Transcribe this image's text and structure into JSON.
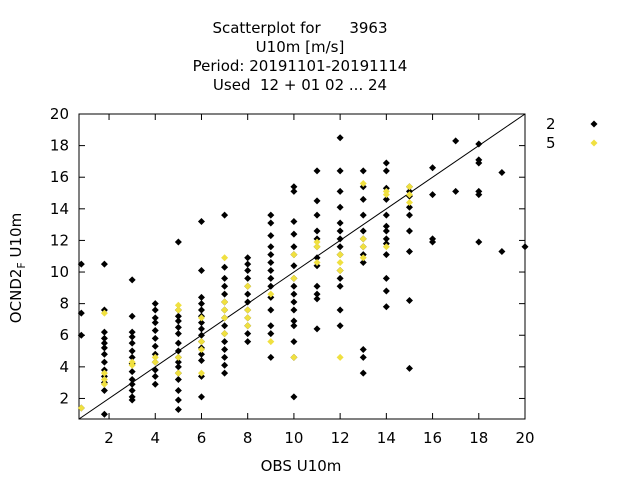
{
  "title_lines": [
    "Scatterplot for      3963",
    "U10m [m/s]",
    "Period: 20191101-20191114",
    "Used  12 + 01 02 ... 24"
  ],
  "colors": {
    "series_2": "#000000",
    "series_5": "#f0e040",
    "axes": "#000000"
  },
  "chart_data": {
    "type": "scatter",
    "title": "Scatterplot for 3963 / U10m [m/s] / Period: 20191101-20191114 / Used 12 + 01 02 ... 24",
    "xlabel": "OBS U10m",
    "ylabel": "OCND2_F U10m",
    "xlim": [
      0.7,
      20
    ],
    "ylim": [
      0.7,
      20
    ],
    "xticks": [
      2,
      4,
      6,
      8,
      10,
      12,
      14,
      16,
      18,
      20
    ],
    "yticks": [
      2,
      4,
      6,
      8,
      10,
      12,
      14,
      16,
      18,
      20
    ],
    "legend_placement": "top-right outside",
    "diagonal_line": true,
    "series": [
      {
        "name": "2",
        "marker": "diamond",
        "color": "#000000",
        "points": [
          [
            0.8,
            10.5
          ],
          [
            0.8,
            7.4
          ],
          [
            0.8,
            6.0
          ],
          [
            0.8,
            1.4
          ],
          [
            1.8,
            10.5
          ],
          [
            1.8,
            7.6
          ],
          [
            1.8,
            6.2
          ],
          [
            1.8,
            5.8
          ],
          [
            1.8,
            5.5
          ],
          [
            1.8,
            5.2
          ],
          [
            1.8,
            4.8
          ],
          [
            1.8,
            4.3
          ],
          [
            1.8,
            3.8
          ],
          [
            1.8,
            3.4
          ],
          [
            1.8,
            3.0
          ],
          [
            1.8,
            2.5
          ],
          [
            1.8,
            1.0
          ],
          [
            3,
            9.5
          ],
          [
            3,
            7.2
          ],
          [
            3,
            6.2
          ],
          [
            3,
            5.9
          ],
          [
            3,
            5.5
          ],
          [
            3,
            5.0
          ],
          [
            3,
            4.6
          ],
          [
            3,
            4.2
          ],
          [
            3,
            3.7
          ],
          [
            3,
            3.2
          ],
          [
            3,
            2.9
          ],
          [
            3,
            2.5
          ],
          [
            3,
            2.1
          ],
          [
            3,
            1.9
          ],
          [
            4,
            8.0
          ],
          [
            4,
            7.6
          ],
          [
            4,
            7.1
          ],
          [
            4,
            6.8
          ],
          [
            4,
            6.3
          ],
          [
            4,
            5.8
          ],
          [
            4,
            5.3
          ],
          [
            4,
            4.8
          ],
          [
            4,
            4.3
          ],
          [
            4,
            3.8
          ],
          [
            4,
            3.4
          ],
          [
            4,
            2.9
          ],
          [
            5,
            11.9
          ],
          [
            5,
            7.6
          ],
          [
            5,
            7.2
          ],
          [
            5,
            6.9
          ],
          [
            5,
            6.5
          ],
          [
            5,
            6.1
          ],
          [
            5,
            5.5
          ],
          [
            5,
            5.0
          ],
          [
            5,
            4.6
          ],
          [
            5,
            4.3
          ],
          [
            5,
            4.0
          ],
          [
            5,
            3.6
          ],
          [
            5,
            3.2
          ],
          [
            5,
            2.5
          ],
          [
            5,
            1.9
          ],
          [
            5,
            1.3
          ],
          [
            6,
            13.2
          ],
          [
            6,
            10.1
          ],
          [
            6,
            8.4
          ],
          [
            6,
            8.0
          ],
          [
            6,
            7.6
          ],
          [
            6,
            7.2
          ],
          [
            6,
            6.8
          ],
          [
            6,
            6.4
          ],
          [
            6,
            6.0
          ],
          [
            6,
            5.6
          ],
          [
            6,
            5.2
          ],
          [
            6,
            4.8
          ],
          [
            6,
            4.4
          ],
          [
            6,
            3.4
          ],
          [
            6,
            2.1
          ],
          [
            7,
            13.6
          ],
          [
            7,
            10.3
          ],
          [
            7,
            9.6
          ],
          [
            7,
            9.1
          ],
          [
            7,
            8.6
          ],
          [
            7,
            8.1
          ],
          [
            7,
            7.6
          ],
          [
            7,
            7.1
          ],
          [
            7,
            6.6
          ],
          [
            7,
            6.1
          ],
          [
            7,
            5.6
          ],
          [
            7,
            5.1
          ],
          [
            7,
            4.6
          ],
          [
            7,
            4.1
          ],
          [
            7,
            3.6
          ],
          [
            8,
            10.9
          ],
          [
            8,
            10.5
          ],
          [
            8,
            10.1
          ],
          [
            8,
            9.6
          ],
          [
            8,
            9.1
          ],
          [
            8,
            8.6
          ],
          [
            8,
            8.1
          ],
          [
            8,
            7.6
          ],
          [
            8,
            7.1
          ],
          [
            8,
            6.6
          ],
          [
            8,
            6.1
          ],
          [
            8,
            5.6
          ],
          [
            9,
            13.6
          ],
          [
            9,
            13.1
          ],
          [
            9,
            12.3
          ],
          [
            9,
            11.6
          ],
          [
            9,
            11.1
          ],
          [
            9,
            10.6
          ],
          [
            9,
            10.1
          ],
          [
            9,
            9.6
          ],
          [
            9,
            9.1
          ],
          [
            9,
            8.4
          ],
          [
            9,
            7.6
          ],
          [
            9,
            6.6
          ],
          [
            9,
            6.1
          ],
          [
            9,
            4.6
          ],
          [
            10,
            15.4
          ],
          [
            10,
            15.1
          ],
          [
            10,
            13.2
          ],
          [
            10,
            12.4
          ],
          [
            10,
            11.6
          ],
          [
            10,
            11.1
          ],
          [
            10,
            10.4
          ],
          [
            10,
            9.6
          ],
          [
            10,
            9.1
          ],
          [
            10,
            8.6
          ],
          [
            10,
            8.1
          ],
          [
            10,
            7.6
          ],
          [
            10,
            6.9
          ],
          [
            10,
            6.6
          ],
          [
            10,
            5.6
          ],
          [
            10,
            4.6
          ],
          [
            10,
            2.1
          ],
          [
            11,
            16.4
          ],
          [
            11,
            14.5
          ],
          [
            11,
            13.6
          ],
          [
            11,
            12.6
          ],
          [
            11,
            12.1
          ],
          [
            11,
            11.6
          ],
          [
            11,
            10.9
          ],
          [
            11,
            10.4
          ],
          [
            11,
            9.1
          ],
          [
            11,
            8.6
          ],
          [
            11,
            8.3
          ],
          [
            11,
            6.4
          ],
          [
            12,
            18.5
          ],
          [
            12,
            16.4
          ],
          [
            12,
            15.1
          ],
          [
            12,
            14.1
          ],
          [
            12,
            13.1
          ],
          [
            12,
            12.6
          ],
          [
            12,
            12.1
          ],
          [
            12,
            11.6
          ],
          [
            12,
            11.1
          ],
          [
            12,
            10.1
          ],
          [
            12,
            9.6
          ],
          [
            12,
            9.1
          ],
          [
            12,
            7.6
          ],
          [
            12,
            6.6
          ],
          [
            13,
            16.4
          ],
          [
            13,
            15.4
          ],
          [
            13,
            14.6
          ],
          [
            13,
            13.6
          ],
          [
            13,
            12.6
          ],
          [
            13,
            12.1
          ],
          [
            13,
            11.6
          ],
          [
            13,
            11.1
          ],
          [
            13,
            10.6
          ],
          [
            13,
            5.1
          ],
          [
            13,
            4.6
          ],
          [
            13,
            3.6
          ],
          [
            14,
            16.9
          ],
          [
            14,
            16.4
          ],
          [
            14,
            15.3
          ],
          [
            14,
            14.6
          ],
          [
            14,
            13.6
          ],
          [
            14,
            12.9
          ],
          [
            14,
            12.6
          ],
          [
            14,
            12.1
          ],
          [
            14,
            11.8
          ],
          [
            14,
            11.1
          ],
          [
            14,
            9.6
          ],
          [
            14,
            8.8
          ],
          [
            14,
            7.8
          ],
          [
            15,
            15.4
          ],
          [
            15,
            15.1
          ],
          [
            15,
            14.8
          ],
          [
            15,
            14.1
          ],
          [
            15,
            13.6
          ],
          [
            15,
            12.6
          ],
          [
            15,
            11.3
          ],
          [
            15,
            8.2
          ],
          [
            15,
            3.9
          ],
          [
            16,
            16.6
          ],
          [
            16,
            14.9
          ],
          [
            16,
            12.1
          ],
          [
            16,
            11.9
          ],
          [
            17,
            18.3
          ],
          [
            17,
            15.1
          ],
          [
            18,
            18.1
          ],
          [
            18,
            17.1
          ],
          [
            18,
            16.9
          ],
          [
            18,
            15.1
          ],
          [
            18,
            14.9
          ],
          [
            18,
            11.9
          ],
          [
            19,
            16.3
          ],
          [
            19,
            11.3
          ],
          [
            20,
            11.6
          ]
        ]
      },
      {
        "name": "5",
        "marker": "diamond",
        "color": "#f0e040",
        "points": [
          [
            0.8,
            1.4
          ],
          [
            1.8,
            7.4
          ],
          [
            1.8,
            3.6
          ],
          [
            1.8,
            3.2
          ],
          [
            1.8,
            2.9
          ],
          [
            3,
            4.3
          ],
          [
            3,
            4.1
          ],
          [
            4,
            4.6
          ],
          [
            4,
            4.3
          ],
          [
            5,
            7.9
          ],
          [
            5,
            7.6
          ],
          [
            5,
            4.6
          ],
          [
            5,
            3.6
          ],
          [
            6,
            7.1
          ],
          [
            6,
            5.6
          ],
          [
            6,
            5.1
          ],
          [
            6,
            3.6
          ],
          [
            7,
            10.9
          ],
          [
            7,
            8.1
          ],
          [
            7,
            7.6
          ],
          [
            7,
            7.1
          ],
          [
            7,
            6.1
          ],
          [
            8,
            7.6
          ],
          [
            8,
            7.1
          ],
          [
            8,
            6.6
          ],
          [
            8,
            9.1
          ],
          [
            9,
            8.6
          ],
          [
            9,
            5.6
          ],
          [
            10,
            11.1
          ],
          [
            10,
            9.6
          ],
          [
            10,
            4.6
          ],
          [
            11,
            11.9
          ],
          [
            11,
            11.6
          ],
          [
            11,
            10.6
          ],
          [
            12,
            11.1
          ],
          [
            12,
            10.6
          ],
          [
            12,
            10.1
          ],
          [
            12,
            4.6
          ],
          [
            13,
            15.6
          ],
          [
            13,
            12.1
          ],
          [
            13,
            11.6
          ],
          [
            13,
            10.9
          ],
          [
            14,
            15.1
          ],
          [
            14,
            14.9
          ],
          [
            14,
            11.6
          ],
          [
            15,
            15.4
          ],
          [
            15,
            14.9
          ],
          [
            15,
            14.4
          ]
        ]
      }
    ]
  }
}
